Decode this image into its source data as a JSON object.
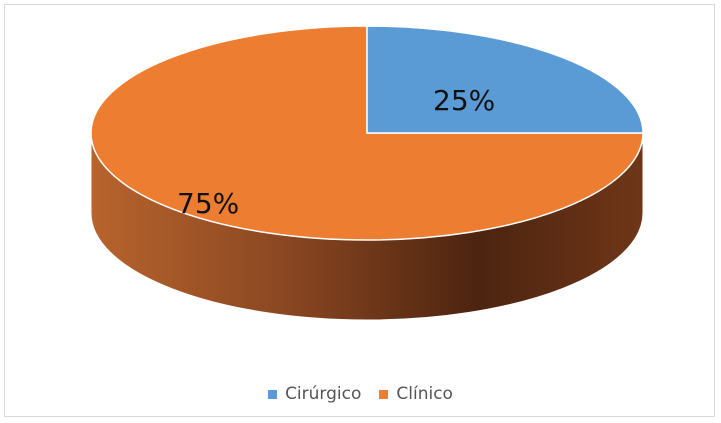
{
  "chart_data": {
    "type": "pie",
    "style": "3d",
    "title": "",
    "legend_position": "bottom",
    "series": [
      {
        "name": "",
        "values": [
          25,
          75
        ]
      }
    ],
    "categories": [
      "Cirúrgico",
      "Clínico"
    ],
    "data_labels": [
      "25%",
      "75%"
    ],
    "colors": {
      "Cirúrgico": "#5b9bd5",
      "Clínico": "#ed7d31",
      "side_light": "#c6652d",
      "side_dark": "#5a2b14",
      "border": "#d9d9d9"
    }
  }
}
